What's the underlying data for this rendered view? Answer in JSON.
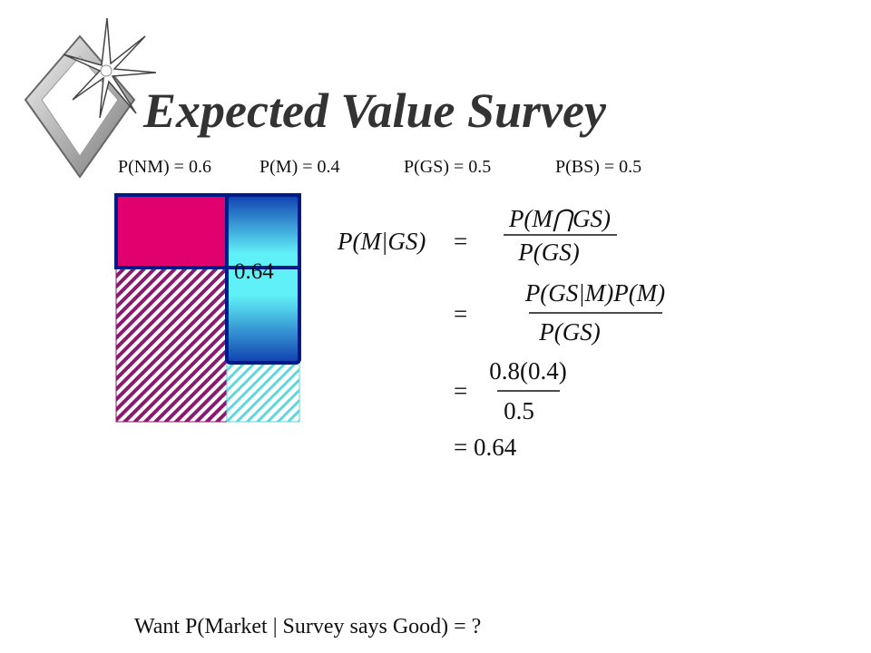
{
  "title": "Expected Value Survey",
  "probabilities": [
    "P(NM) = 0.6",
    "P(M) = 0.4",
    "P(GS) = 0.5",
    "P(BS) = 0.5"
  ],
  "diagram": {
    "label": "0.64"
  },
  "equations": {
    "lhs": "P(M|GS)",
    "lines": [
      {
        "sign": "=",
        "numerator": "P(M⋂GS)",
        "denominator": "P(GS)"
      },
      {
        "sign": "=",
        "numerator": "P(GS|M)P(M)",
        "denominator": "P(GS)"
      },
      {
        "sign": "=",
        "numerator": "0.8(0.4)",
        "denominator": "0.5"
      },
      {
        "sign": "=",
        "result": "0.64"
      }
    ]
  },
  "footer": "Want P(Market | Survey says Good) = ?"
}
